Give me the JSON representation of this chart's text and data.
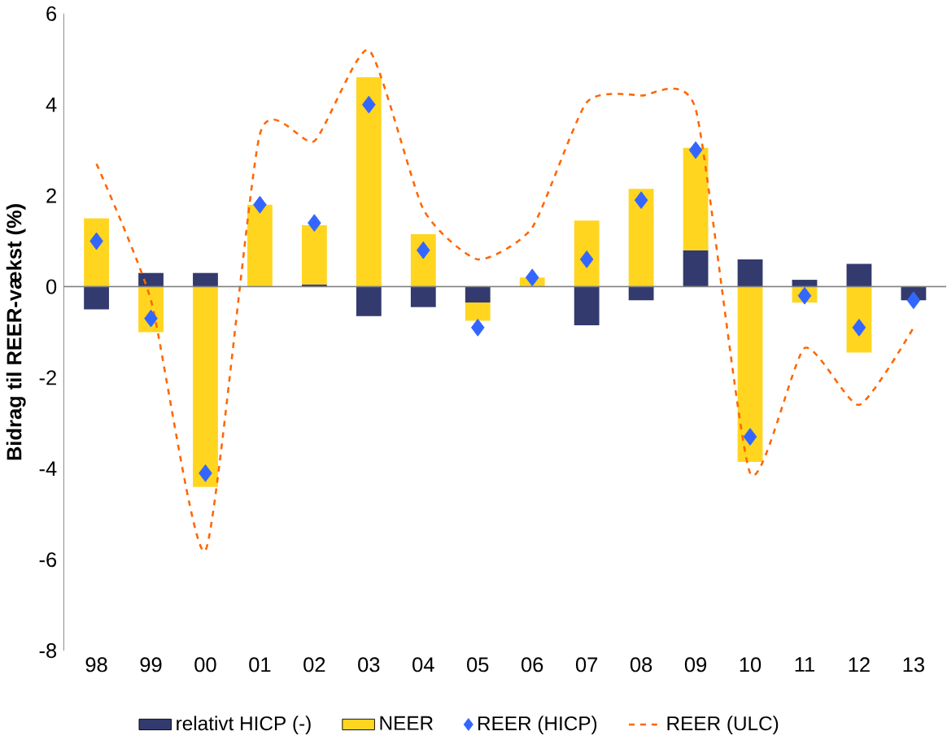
{
  "chart_data": {
    "type": "bar",
    "stacked": true,
    "ylabel": "Bidrag til REER-vækst (%)",
    "categories": [
      "98",
      "99",
      "00",
      "01",
      "02",
      "03",
      "04",
      "05",
      "06",
      "07",
      "08",
      "09",
      "10",
      "11",
      "12",
      "13"
    ],
    "ylim": [
      -8,
      6
    ],
    "yticks": [
      -8,
      -6,
      -4,
      -2,
      0,
      2,
      4,
      6
    ],
    "legend": "bottom",
    "series": [
      {
        "name": "relativt HICP (-)",
        "color": "#333a6e",
        "values": [
          -0.5,
          0.3,
          0.3,
          0,
          0.05,
          -0.65,
          -0.45,
          -0.35,
          0,
          -0.85,
          -0.3,
          0.8,
          0.6,
          0.15,
          0.5,
          -0.3
        ]
      },
      {
        "name": "NEER",
        "color": "#ffd520",
        "values": [
          1.5,
          -1.0,
          -4.4,
          1.8,
          1.3,
          4.6,
          1.15,
          -0.4,
          0.2,
          1.45,
          2.15,
          2.25,
          -3.85,
          -0.35,
          -1.45,
          0
        ]
      },
      {
        "name": "REER (HICP)",
        "type": "scatter",
        "marker": "diamond",
        "color": "#3366ff",
        "values": [
          1.0,
          -0.7,
          -4.1,
          1.8,
          1.4,
          4.0,
          0.8,
          -0.9,
          0.2,
          0.6,
          1.9,
          3.0,
          -3.3,
          -0.2,
          -0.9,
          -0.3
        ]
      },
      {
        "name": "REER (ULC)",
        "type": "line",
        "line_style": "dashed",
        "color": "#ff6600",
        "values": [
          2.7,
          -0.3,
          -5.8,
          3.35,
          3.2,
          5.2,
          1.7,
          0.6,
          1.3,
          4.05,
          4.2,
          3.9,
          -4.1,
          -1.35,
          -2.6,
          -0.9
        ]
      }
    ]
  }
}
